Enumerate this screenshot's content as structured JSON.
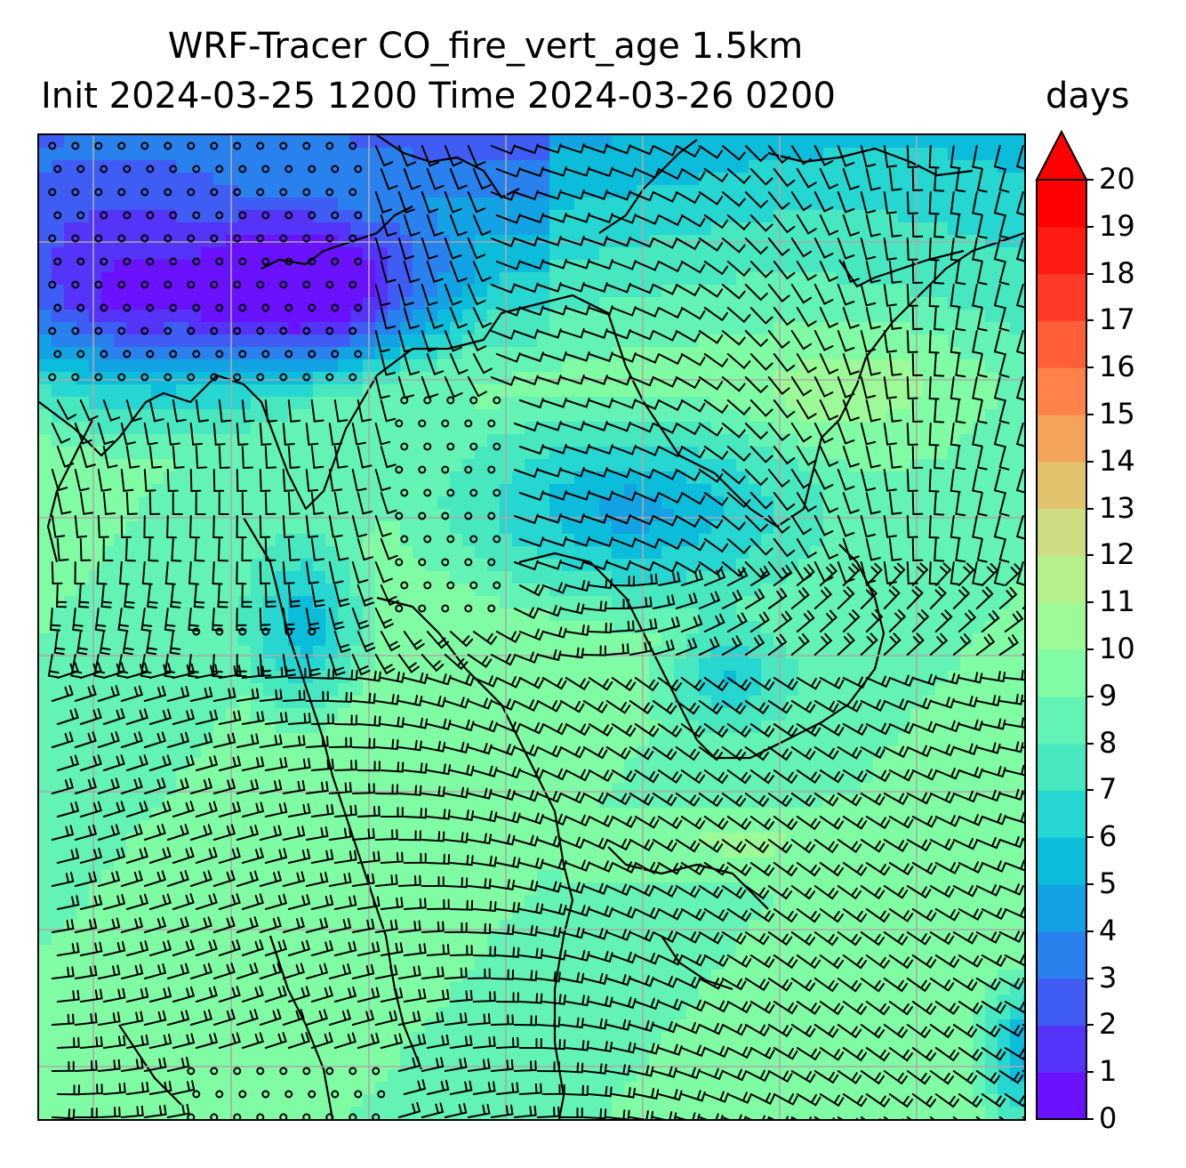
{
  "chart_data": {
    "type": "heatmap",
    "title_line1": "WRF-Tracer CO_fire_vert_age 1.5km",
    "title_line2": "Init 2024-03-25 1200 Time 2024-03-26 0200",
    "units": "days",
    "colorbar": {
      "min": 0,
      "max": 20,
      "ticks": [
        "0",
        "1",
        "2",
        "3",
        "4",
        "5",
        "6",
        "7",
        "8",
        "9",
        "10",
        "11",
        "12",
        "13",
        "14",
        "15",
        "16",
        "17",
        "18",
        "19",
        "20"
      ],
      "extend": "max",
      "colormap": "rainbow"
    },
    "field_description_regions": [
      {
        "region": "upper-left",
        "value_days": 1
      },
      {
        "region": "upper-center",
        "value_days": 3
      },
      {
        "region": "center-right band",
        "value_days": 4
      },
      {
        "region": "lower half",
        "value_days": 9
      }
    ],
    "grid": true,
    "wind_barbs": true
  },
  "colors": {
    "c0": "#6a11ff",
    "c1": "#5533f9",
    "c2": "#3f5df4",
    "c3": "#2981ee",
    "c4": "#13a2e3",
    "c5": "#0cbcdb",
    "c6": "#26d6d0",
    "c7": "#47e8c0",
    "c8": "#63f3b4",
    "c9": "#80fca4",
    "c10": "#9cfb96",
    "c11": "#b6f08a",
    "c12": "#ccdc80",
    "c13": "#e3c26e",
    "c14": "#f3a35a",
    "c15": "#ff824a",
    "c16": "#ff5e38",
    "c17": "#ff3a26",
    "c18": "#ff1a12",
    "c19": "#ff0000",
    "grid": "#aaaaaa",
    "coast": "#000000"
  }
}
